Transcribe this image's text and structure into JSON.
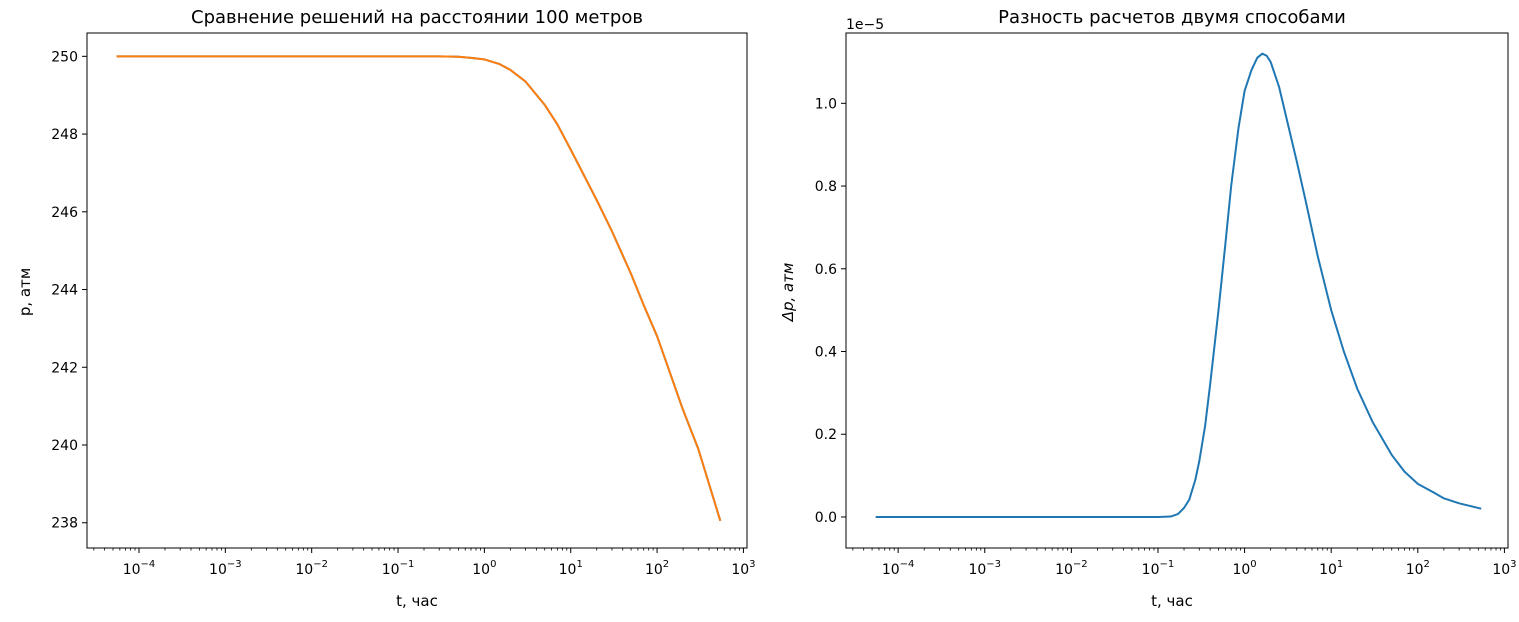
{
  "chart_data": [
    {
      "type": "line",
      "title": "Сравнение решений на расстоянии 100 метров",
      "xlabel": "t, час",
      "ylabel": "р, атм",
      "xscale": "log",
      "xlim": [
        2.5e-05,
        1100
      ],
      "ylim": [
        237.35,
        250.6
      ],
      "x_ticks": [
        {
          "value": 0.0001,
          "base": "10",
          "exp": "−4"
        },
        {
          "value": 0.001,
          "base": "10",
          "exp": "−3"
        },
        {
          "value": 0.01,
          "base": "10",
          "exp": "−2"
        },
        {
          "value": 0.1,
          "base": "10",
          "exp": "−1"
        },
        {
          "value": 1,
          "base": "10",
          "exp": "0"
        },
        {
          "value": 10,
          "base": "10",
          "exp": "1"
        },
        {
          "value": 100,
          "base": "10",
          "exp": "2"
        },
        {
          "value": 1000,
          "base": "10",
          "exp": "3"
        }
      ],
      "y_ticks": [
        {
          "value": 250,
          "label": "250"
        },
        {
          "value": 248,
          "label": "248"
        },
        {
          "value": 246,
          "label": "246"
        },
        {
          "value": 244,
          "label": "244"
        },
        {
          "value": 242,
          "label": "242"
        },
        {
          "value": 240,
          "label": "240"
        },
        {
          "value": 238,
          "label": "238"
        }
      ],
      "grid": false,
      "series": [
        {
          "color": "#1f77b4",
          "x": [
            5.5e-05,
            0.0001,
            0.001,
            0.01,
            0.1,
            0.3,
            0.5,
            0.7,
            1.0,
            1.5,
            2,
            3,
            5,
            7,
            10,
            20,
            30,
            50,
            70,
            100,
            200,
            300,
            540
          ],
          "y": [
            250.0,
            250.0,
            250.0,
            250.0,
            250.0,
            250.0,
            249.99,
            249.96,
            249.92,
            249.8,
            249.65,
            249.35,
            248.75,
            248.25,
            247.6,
            246.3,
            245.5,
            244.4,
            243.6,
            242.8,
            240.9,
            239.9,
            238.05
          ]
        },
        {
          "color": "#ff7f0e",
          "x": [
            5.5e-05,
            0.0001,
            0.001,
            0.01,
            0.1,
            0.3,
            0.5,
            0.7,
            1.0,
            1.5,
            2,
            3,
            5,
            7,
            10,
            20,
            30,
            50,
            70,
            100,
            200,
            300,
            540
          ],
          "y": [
            250.0,
            250.0,
            250.0,
            250.0,
            250.0,
            250.0,
            249.99,
            249.96,
            249.92,
            249.8,
            249.65,
            249.35,
            248.75,
            248.25,
            247.6,
            246.3,
            245.5,
            244.4,
            243.6,
            242.8,
            240.9,
            239.9,
            238.05
          ]
        }
      ]
    },
    {
      "type": "line",
      "title": "Разность расчетов двумя способами",
      "xlabel": "t, час",
      "ylabel": "Δp, атм",
      "offset_text": "1e−5",
      "xscale": "log",
      "xlim": [
        2.5e-05,
        1100
      ],
      "ylim": [
        -0.075,
        1.17
      ],
      "x_ticks": [
        {
          "value": 0.0001,
          "base": "10",
          "exp": "−4"
        },
        {
          "value": 0.001,
          "base": "10",
          "exp": "−3"
        },
        {
          "value": 0.01,
          "base": "10",
          "exp": "−2"
        },
        {
          "value": 0.1,
          "base": "10",
          "exp": "−1"
        },
        {
          "value": 1,
          "base": "10",
          "exp": "0"
        },
        {
          "value": 10,
          "base": "10",
          "exp": "1"
        },
        {
          "value": 100,
          "base": "10",
          "exp": "2"
        },
        {
          "value": 1000,
          "base": "10",
          "exp": "3"
        }
      ],
      "y_ticks": [
        {
          "value": 0.0,
          "label": "0.0"
        },
        {
          "value": 0.2,
          "label": "0.2"
        },
        {
          "value": 0.4,
          "label": "0.4"
        },
        {
          "value": 0.6,
          "label": "0.6"
        },
        {
          "value": 0.8,
          "label": "0.8"
        },
        {
          "value": 1.0,
          "label": "1.0"
        }
      ],
      "grid": false,
      "series": [
        {
          "color": "#1f77b4",
          "x": [
            5.5e-05,
            0.0001,
            0.001,
            0.01,
            0.1,
            0.14,
            0.17,
            0.2,
            0.23,
            0.27,
            0.3,
            0.35,
            0.4,
            0.5,
            0.6,
            0.7,
            0.85,
            1.0,
            1.2,
            1.4,
            1.6,
            1.8,
            2.0,
            2.5,
            3.0,
            4.0,
            5.0,
            7.0,
            10,
            14,
            20,
            30,
            50,
            70,
            100,
            150,
            200,
            300,
            540
          ],
          "y": [
            0,
            0,
            0,
            0,
            0.0,
            0.001,
            0.007,
            0.022,
            0.042,
            0.09,
            0.135,
            0.22,
            0.32,
            0.5,
            0.66,
            0.8,
            0.94,
            1.03,
            1.08,
            1.11,
            1.12,
            1.115,
            1.1,
            1.04,
            0.97,
            0.86,
            0.77,
            0.63,
            0.5,
            0.4,
            0.31,
            0.23,
            0.15,
            0.11,
            0.08,
            0.06,
            0.045,
            0.033,
            0.02
          ]
        }
      ]
    }
  ]
}
